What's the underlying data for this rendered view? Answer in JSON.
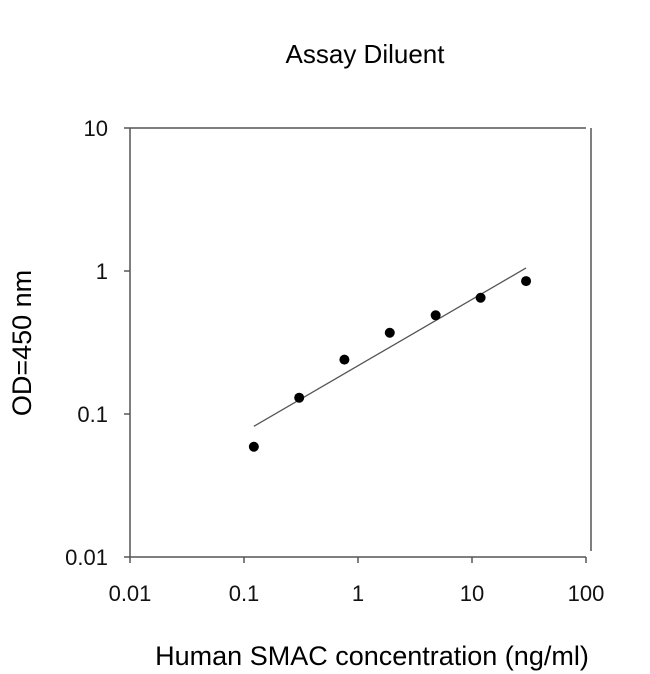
{
  "chart_data": {
    "type": "scatter",
    "title": "Assay Diluent",
    "xlabel": "Human SMAC concentration (ng/ml)",
    "ylabel": "OD=450 nm",
    "xscale": "log",
    "yscale": "log",
    "xlim": [
      0.01,
      100
    ],
    "ylim": [
      0.01,
      10
    ],
    "xticks": [
      0.01,
      0.1,
      1,
      10,
      100
    ],
    "xtick_labels": [
      "0.01",
      "0.1",
      "1",
      "10",
      "100"
    ],
    "yticks": [
      0.01,
      0.1,
      1,
      10
    ],
    "ytick_labels": [
      "0.01",
      "0.1",
      "1",
      "10"
    ],
    "grid": false,
    "legend": null,
    "series": [
      {
        "name": "Standard curve points",
        "marker": "circle",
        "x": [
          0.122,
          0.305,
          0.76,
          1.9,
          4.8,
          11.9,
          29.8
        ],
        "y": [
          0.059,
          0.13,
          0.24,
          0.37,
          0.49,
          0.65,
          0.85
        ]
      },
      {
        "name": "Fit line",
        "style": "line",
        "x": [
          0.122,
          29.8
        ],
        "y": [
          0.082,
          1.05
        ]
      }
    ],
    "colors": {
      "points": "#000000",
      "fit_line": "#555555",
      "axis": "#555555"
    }
  }
}
